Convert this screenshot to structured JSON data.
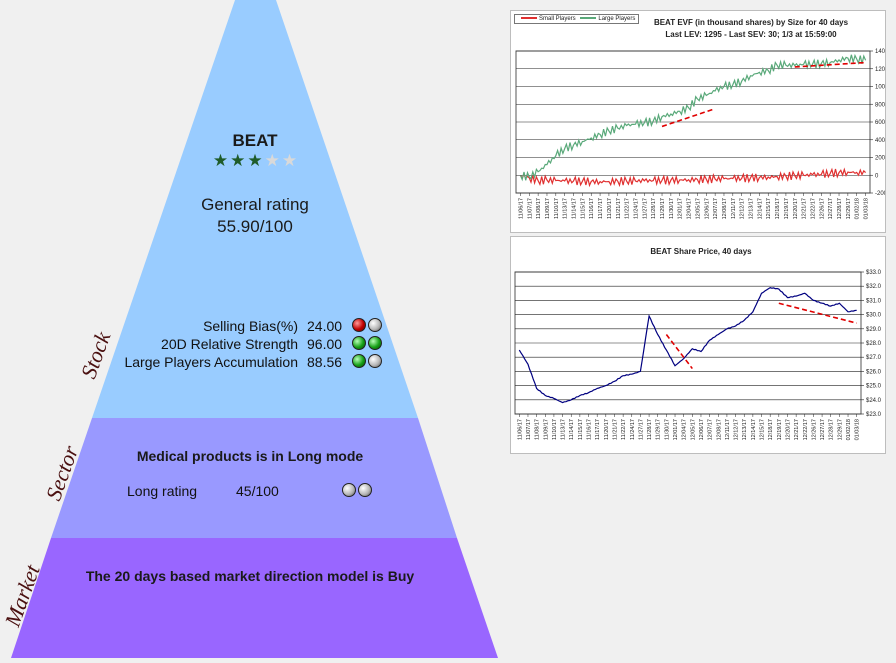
{
  "pyramid": {
    "stock": {
      "side_label": "Stock",
      "ticker": "BEAT",
      "stars_filled": 3,
      "stars_total": 5,
      "rating_label": "General rating",
      "rating_value": "55.90/100",
      "metrics": [
        {
          "label": "Selling Bias(%)",
          "value": "24.00",
          "lights": [
            "red",
            "grey"
          ]
        },
        {
          "label": "20D Relative Strength",
          "value": "96.00",
          "lights": [
            "green",
            "green"
          ]
        },
        {
          "label": "Large Players Accumulation",
          "value": "88.56",
          "lights": [
            "green",
            "grey"
          ]
        }
      ]
    },
    "sector": {
      "side_label": "Sector",
      "headline": "Medical products is in Long mode",
      "rating_label": "Long rating",
      "rating_value": "45/100",
      "lights": [
        "grey",
        "grey"
      ]
    },
    "market": {
      "side_label": "Market",
      "headline": "The 20 days based market direction model is Buy"
    },
    "colors": {
      "stock": "#99ccff",
      "sector": "#9999ff",
      "market": "#9966ff",
      "background": "#f0f0f0"
    }
  },
  "chart_data": [
    {
      "type": "line",
      "title": "BEAT EVF (in thousand shares) by Size for 40 days",
      "subtitle": "Last LEV: 1295 - Last SEV: 30; 1/3 at 15:59:00",
      "legend_position": "top-left",
      "ylim": [
        -200,
        1400
      ],
      "yticks": [
        "-200",
        "0",
        "200",
        "400",
        "600",
        "800",
        "1000",
        "1200",
        "1400"
      ],
      "x": [
        "11/06/17",
        "11/07/17",
        "11/08/17",
        "11/09/17",
        "11/10/17",
        "11/13/17",
        "11/14/17",
        "11/15/17",
        "11/16/17",
        "11/17/17",
        "11/20/17",
        "11/21/17",
        "11/22/17",
        "11/24/17",
        "11/27/17",
        "11/28/17",
        "11/29/17",
        "11/30/17",
        "12/01/17",
        "12/04/17",
        "12/05/17",
        "12/06/17",
        "12/07/17",
        "12/08/17",
        "12/11/17",
        "12/12/17",
        "12/13/17",
        "12/14/17",
        "12/15/17",
        "12/18/17",
        "12/19/17",
        "12/20/17",
        "12/21/17",
        "12/22/17",
        "12/26/17",
        "12/27/17",
        "12/28/17",
        "12/29/17",
        "01/02/18",
        "01/03/18"
      ],
      "series": [
        {
          "name": "Small Players",
          "color": "#e03030",
          "values": [
            0,
            -30,
            -60,
            -55,
            -60,
            -65,
            -65,
            -68,
            -70,
            -72,
            -70,
            -68,
            -66,
            -65,
            -62,
            -60,
            -58,
            -55,
            -52,
            -50,
            -48,
            -45,
            -42,
            -40,
            -38,
            -35,
            -30,
            -25,
            -20,
            -15,
            -10,
            -5,
            0,
            5,
            10,
            20,
            30,
            35,
            32,
            30
          ]
        },
        {
          "name": "Large Players",
          "color": "#5aa97a",
          "values": [
            0,
            -20,
            40,
            120,
            220,
            300,
            340,
            380,
            420,
            460,
            500,
            530,
            560,
            575,
            590,
            610,
            660,
            690,
            720,
            760,
            860,
            900,
            950,
            1000,
            1020,
            1060,
            1120,
            1160,
            1180,
            1240,
            1240,
            1235,
            1250,
            1250,
            1260,
            1270,
            1300,
            1320,
            1310,
            1295
          ]
        }
      ]
    },
    {
      "type": "line",
      "title": "BEAT Share Price, 40 days",
      "ylim": [
        23.0,
        33.0
      ],
      "yticks": [
        "$23.0",
        "$24.0",
        "$25.0",
        "$26.0",
        "$27.0",
        "$28.0",
        "$29.0",
        "$30.0",
        "$31.0",
        "$32.0",
        "$33.0"
      ],
      "x": [
        "11/06/17",
        "11/07/17",
        "11/08/17",
        "11/09/17",
        "11/10/17",
        "11/13/17",
        "11/14/17",
        "11/15/17",
        "11/16/17",
        "11/17/17",
        "11/20/17",
        "11/21/17",
        "11/22/17",
        "11/24/17",
        "11/27/17",
        "11/28/17",
        "11/29/17",
        "11/30/17",
        "12/01/17",
        "12/04/17",
        "12/05/17",
        "12/06/17",
        "12/07/17",
        "12/08/17",
        "12/11/17",
        "12/12/17",
        "12/13/17",
        "12/14/17",
        "12/15/17",
        "12/18/17",
        "12/19/17",
        "12/20/17",
        "12/21/17",
        "12/22/17",
        "12/26/17",
        "12/27/17",
        "12/28/17",
        "12/29/17",
        "01/02/18",
        "01/03/18"
      ],
      "series": [
        {
          "name": "",
          "color": "#000080",
          "values": [
            27.5,
            26.5,
            24.8,
            24.3,
            24.1,
            23.8,
            24.0,
            24.3,
            24.5,
            24.8,
            25.0,
            25.3,
            25.7,
            25.8,
            26.0,
            29.9,
            28.6,
            27.5,
            26.4,
            26.9,
            27.6,
            27.4,
            28.2,
            28.6,
            29.0,
            29.2,
            29.6,
            30.2,
            31.5,
            31.9,
            31.8,
            31.2,
            31.3,
            31.5,
            31.0,
            30.8,
            30.6,
            30.8,
            30.2,
            30.3
          ]
        }
      ]
    }
  ]
}
